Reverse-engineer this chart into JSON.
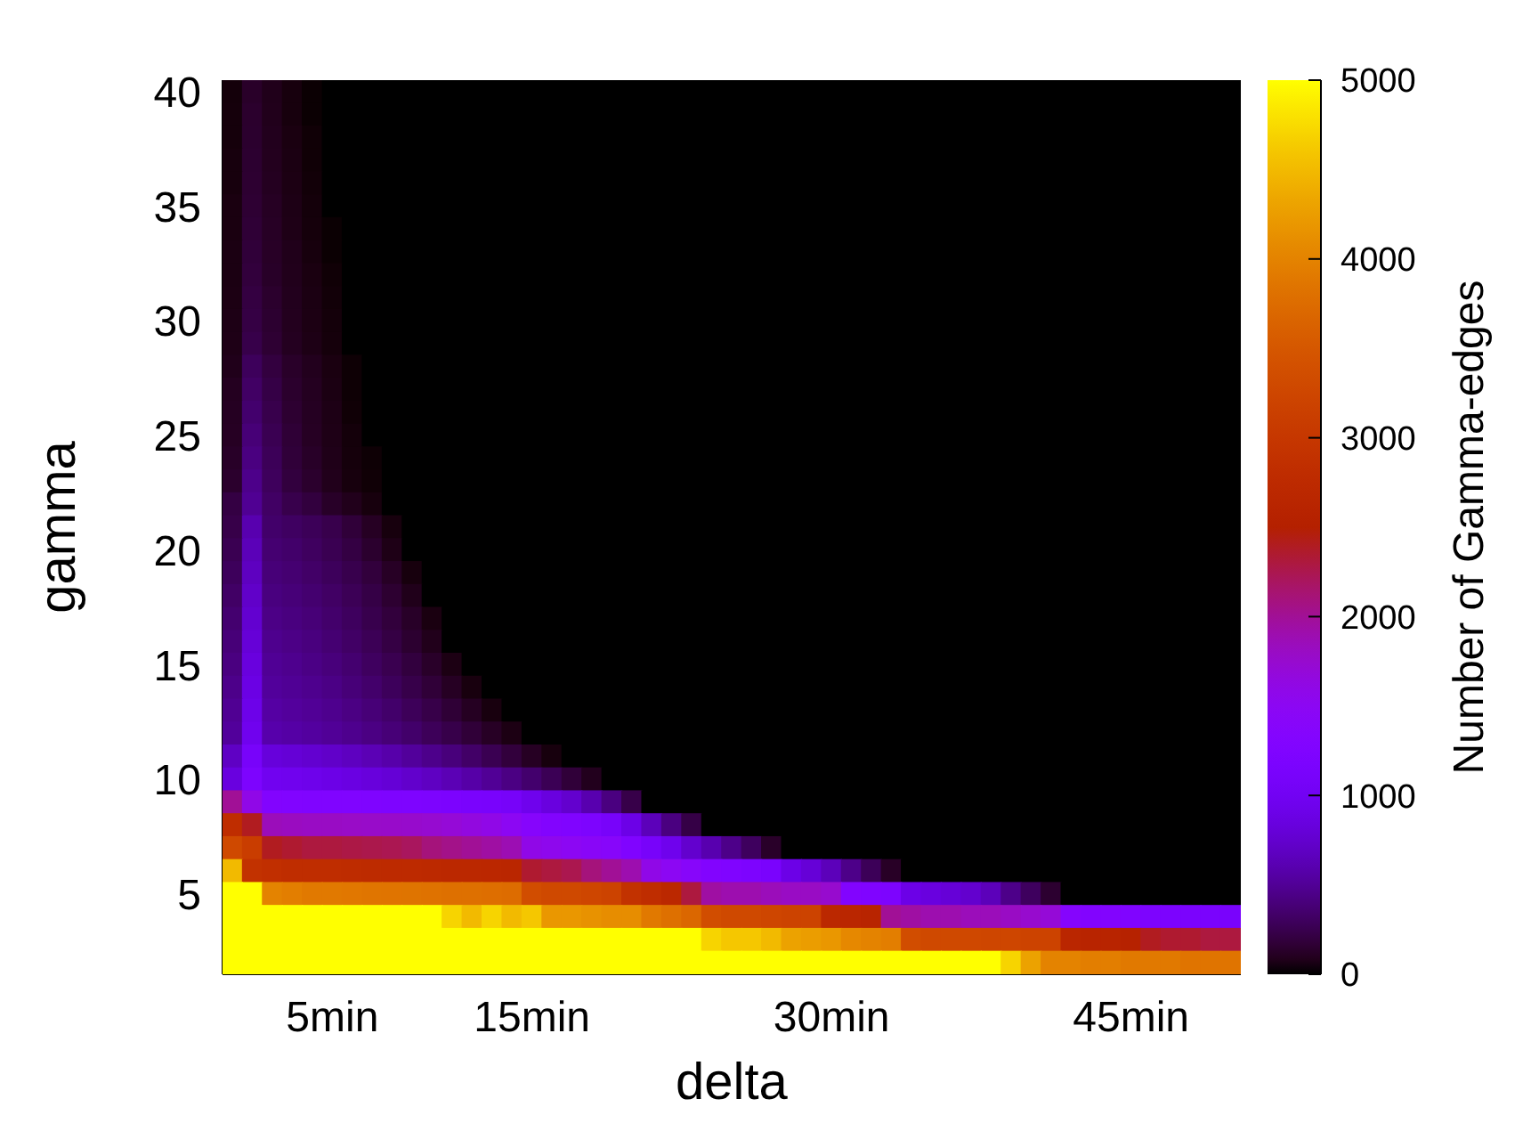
{
  "chart_data": {
    "type": "heatmap",
    "xlabel": "delta",
    "ylabel": "gamma",
    "clabel": "Number of Gamma-edges",
    "categories": [
      null,
      null,
      null,
      null,
      null,
      "5min",
      null,
      null,
      null,
      null,
      null,
      null,
      null,
      null,
      null,
      "15min",
      null,
      null,
      null,
      null,
      null,
      null,
      null,
      null,
      null,
      null,
      null,
      null,
      null,
      null,
      "30min",
      null,
      null,
      null,
      null,
      null,
      null,
      null,
      null,
      null,
      null,
      null,
      null,
      null,
      null,
      "45min",
      null,
      null,
      null,
      null,
      null
    ],
    "y_categories": [
      "40",
      null,
      null,
      null,
      null,
      "35",
      null,
      null,
      null,
      null,
      "30",
      null,
      null,
      null,
      null,
      "25",
      null,
      null,
      null,
      null,
      "20",
      null,
      null,
      null,
      null,
      "15",
      null,
      null,
      null,
      null,
      "10",
      null,
      null,
      null,
      null,
      "5",
      null,
      null,
      null
    ],
    "clim": [
      0,
      5000
    ],
    "cticks": [
      0,
      1000,
      2000,
      3000,
      4000,
      5000
    ],
    "cells": [
      [
        30,
        130,
        80,
        40,
        10,
        0,
        0,
        0,
        0,
        0,
        0,
        0,
        0,
        0,
        0,
        0,
        0,
        0,
        0,
        0,
        0,
        0,
        0,
        0,
        0,
        0,
        0,
        0,
        0,
        0,
        0,
        0,
        0,
        0,
        0,
        0,
        0,
        0,
        0,
        0,
        0,
        0,
        0,
        0,
        0,
        0,
        0,
        0,
        0,
        0,
        0
      ],
      [
        35,
        140,
        85,
        40,
        10,
        0,
        0,
        0,
        0,
        0,
        0,
        0,
        0,
        0,
        0,
        0,
        0,
        0,
        0,
        0,
        0,
        0,
        0,
        0,
        0,
        0,
        0,
        0,
        0,
        0,
        0,
        0,
        0,
        0,
        0,
        0,
        0,
        0,
        0,
        0,
        0,
        0,
        0,
        0,
        0,
        0,
        0,
        0,
        0,
        0,
        0
      ],
      [
        35,
        145,
        90,
        50,
        20,
        0,
        0,
        0,
        0,
        0,
        0,
        0,
        0,
        0,
        0,
        0,
        0,
        0,
        0,
        0,
        0,
        0,
        0,
        0,
        0,
        0,
        0,
        0,
        0,
        0,
        0,
        0,
        0,
        0,
        0,
        0,
        0,
        0,
        0,
        0,
        0,
        0,
        0,
        0,
        0,
        0,
        0,
        0,
        0,
        0,
        0
      ],
      [
        40,
        150,
        95,
        55,
        20,
        0,
        0,
        0,
        0,
        0,
        0,
        0,
        0,
        0,
        0,
        0,
        0,
        0,
        0,
        0,
        0,
        0,
        0,
        0,
        0,
        0,
        0,
        0,
        0,
        0,
        0,
        0,
        0,
        0,
        0,
        0,
        0,
        0,
        0,
        0,
        0,
        0,
        0,
        0,
        0,
        0,
        0,
        0,
        0,
        0,
        0
      ],
      [
        40,
        155,
        100,
        60,
        25,
        0,
        0,
        0,
        0,
        0,
        0,
        0,
        0,
        0,
        0,
        0,
        0,
        0,
        0,
        0,
        0,
        0,
        0,
        0,
        0,
        0,
        0,
        0,
        0,
        0,
        0,
        0,
        0,
        0,
        0,
        0,
        0,
        0,
        0,
        0,
        0,
        0,
        0,
        0,
        0,
        0,
        0,
        0,
        0,
        0,
        0
      ],
      [
        50,
        160,
        110,
        65,
        30,
        0,
        0,
        0,
        0,
        0,
        0,
        0,
        0,
        0,
        0,
        0,
        0,
        0,
        0,
        0,
        0,
        0,
        0,
        0,
        0,
        0,
        0,
        0,
        0,
        0,
        0,
        0,
        0,
        0,
        0,
        0,
        0,
        0,
        0,
        0,
        0,
        0,
        0,
        0,
        0,
        0,
        0,
        0,
        0,
        0,
        0
      ],
      [
        50,
        170,
        115,
        70,
        35,
        10,
        0,
        0,
        0,
        0,
        0,
        0,
        0,
        0,
        0,
        0,
        0,
        0,
        0,
        0,
        0,
        0,
        0,
        0,
        0,
        0,
        0,
        0,
        0,
        0,
        0,
        0,
        0,
        0,
        0,
        0,
        0,
        0,
        0,
        0,
        0,
        0,
        0,
        0,
        0,
        0,
        0,
        0,
        0,
        0,
        0
      ],
      [
        55,
        180,
        120,
        80,
        40,
        10,
        0,
        0,
        0,
        0,
        0,
        0,
        0,
        0,
        0,
        0,
        0,
        0,
        0,
        0,
        0,
        0,
        0,
        0,
        0,
        0,
        0,
        0,
        0,
        0,
        0,
        0,
        0,
        0,
        0,
        0,
        0,
        0,
        0,
        0,
        0,
        0,
        0,
        0,
        0,
        0,
        0,
        0,
        0,
        0,
        0
      ],
      [
        55,
        190,
        125,
        85,
        50,
        20,
        0,
        0,
        0,
        0,
        0,
        0,
        0,
        0,
        0,
        0,
        0,
        0,
        0,
        0,
        0,
        0,
        0,
        0,
        0,
        0,
        0,
        0,
        0,
        0,
        0,
        0,
        0,
        0,
        0,
        0,
        0,
        0,
        0,
        0,
        0,
        0,
        0,
        0,
        0,
        0,
        0,
        0,
        0,
        0,
        0
      ],
      [
        60,
        205,
        140,
        90,
        55,
        25,
        0,
        0,
        0,
        0,
        0,
        0,
        0,
        0,
        0,
        0,
        0,
        0,
        0,
        0,
        0,
        0,
        0,
        0,
        0,
        0,
        0,
        0,
        0,
        0,
        0,
        0,
        0,
        0,
        0,
        0,
        0,
        0,
        0,
        0,
        0,
        0,
        0,
        0,
        0,
        0,
        0,
        0,
        0,
        0,
        0
      ],
      [
        65,
        215,
        150,
        95,
        60,
        30,
        0,
        0,
        0,
        0,
        0,
        0,
        0,
        0,
        0,
        0,
        0,
        0,
        0,
        0,
        0,
        0,
        0,
        0,
        0,
        0,
        0,
        0,
        0,
        0,
        0,
        0,
        0,
        0,
        0,
        0,
        0,
        0,
        0,
        0,
        0,
        0,
        0,
        0,
        0,
        0,
        0,
        0,
        0,
        0,
        0
      ],
      [
        70,
        235,
        160,
        100,
        65,
        35,
        0,
        0,
        0,
        0,
        0,
        0,
        0,
        0,
        0,
        0,
        0,
        0,
        0,
        0,
        0,
        0,
        0,
        0,
        0,
        0,
        0,
        0,
        0,
        0,
        0,
        0,
        0,
        0,
        0,
        0,
        0,
        0,
        0,
        0,
        0,
        0,
        0,
        0,
        0,
        0,
        0,
        0,
        0,
        0,
        0
      ],
      [
        80,
        290,
        200,
        130,
        90,
        50,
        15,
        0,
        0,
        0,
        0,
        0,
        0,
        0,
        0,
        0,
        0,
        0,
        0,
        0,
        0,
        0,
        0,
        0,
        0,
        0,
        0,
        0,
        0,
        0,
        0,
        0,
        0,
        0,
        0,
        0,
        0,
        0,
        0,
        0,
        0,
        0,
        0,
        0,
        0,
        0,
        0,
        0,
        0,
        0,
        0
      ],
      [
        100,
        320,
        220,
        140,
        100,
        55,
        15,
        0,
        0,
        0,
        0,
        0,
        0,
        0,
        0,
        0,
        0,
        0,
        0,
        0,
        0,
        0,
        0,
        0,
        0,
        0,
        0,
        0,
        0,
        0,
        0,
        0,
        0,
        0,
        0,
        0,
        0,
        0,
        0,
        0,
        0,
        0,
        0,
        0,
        0,
        0,
        0,
        0,
        0,
        0,
        0
      ],
      [
        105,
        350,
        240,
        155,
        105,
        65,
        20,
        0,
        0,
        0,
        0,
        0,
        0,
        0,
        0,
        0,
        0,
        0,
        0,
        0,
        0,
        0,
        0,
        0,
        0,
        0,
        0,
        0,
        0,
        0,
        0,
        0,
        0,
        0,
        0,
        0,
        0,
        0,
        0,
        0,
        0,
        0,
        0,
        0,
        0,
        0,
        0,
        0,
        0,
        0,
        0
      ],
      [
        110,
        385,
        260,
        170,
        110,
        70,
        30,
        0,
        0,
        0,
        0,
        0,
        0,
        0,
        0,
        0,
        0,
        0,
        0,
        0,
        0,
        0,
        0,
        0,
        0,
        0,
        0,
        0,
        0,
        0,
        0,
        0,
        0,
        0,
        0,
        0,
        0,
        0,
        0,
        0,
        0,
        0,
        0,
        0,
        0,
        0,
        0,
        0,
        0,
        0,
        0
      ],
      [
        125,
        420,
        280,
        180,
        125,
        75,
        35,
        15,
        0,
        0,
        0,
        0,
        0,
        0,
        0,
        0,
        0,
        0,
        0,
        0,
        0,
        0,
        0,
        0,
        0,
        0,
        0,
        0,
        0,
        0,
        0,
        0,
        0,
        0,
        0,
        0,
        0,
        0,
        0,
        0,
        0,
        0,
        0,
        0,
        0,
        0,
        0,
        0,
        0,
        0,
        0
      ],
      [
        140,
        455,
        295,
        195,
        140,
        85,
        40,
        20,
        0,
        0,
        0,
        0,
        0,
        0,
        0,
        0,
        0,
        0,
        0,
        0,
        0,
        0,
        0,
        0,
        0,
        0,
        0,
        0,
        0,
        0,
        0,
        0,
        0,
        0,
        0,
        0,
        0,
        0,
        0,
        0,
        0,
        0,
        0,
        0,
        0,
        0,
        0,
        0,
        0,
        0,
        0
      ],
      [
        210,
        490,
        320,
        240,
        195,
        125,
        85,
        40,
        0,
        0,
        0,
        0,
        0,
        0,
        0,
        0,
        0,
        0,
        0,
        0,
        0,
        0,
        0,
        0,
        0,
        0,
        0,
        0,
        0,
        0,
        0,
        0,
        0,
        0,
        0,
        0,
        0,
        0,
        0,
        0,
        0,
        0,
        0,
        0,
        0,
        0,
        0,
        0,
        0,
        0,
        0
      ],
      [
        230,
        600,
        340,
        310,
        280,
        240,
        180,
        110,
        40,
        0,
        0,
        0,
        0,
        0,
        0,
        0,
        0,
        0,
        0,
        0,
        0,
        0,
        0,
        0,
        0,
        0,
        0,
        0,
        0,
        0,
        0,
        0,
        0,
        0,
        0,
        0,
        0,
        0,
        0,
        0,
        0,
        0,
        0,
        0,
        0,
        0,
        0,
        0,
        0,
        0,
        0
      ],
      [
        260,
        640,
        365,
        340,
        305,
        260,
        210,
        145,
        70,
        0,
        0,
        0,
        0,
        0,
        0,
        0,
        0,
        0,
        0,
        0,
        0,
        0,
        0,
        0,
        0,
        0,
        0,
        0,
        0,
        0,
        0,
        0,
        0,
        0,
        0,
        0,
        0,
        0,
        0,
        0,
        0,
        0,
        0,
        0,
        0,
        0,
        0,
        0,
        0,
        0,
        0
      ],
      [
        290,
        680,
        390,
        365,
        330,
        290,
        245,
        190,
        115,
        40,
        0,
        0,
        0,
        0,
        0,
        0,
        0,
        0,
        0,
        0,
        0,
        0,
        0,
        0,
        0,
        0,
        0,
        0,
        0,
        0,
        0,
        0,
        0,
        0,
        0,
        0,
        0,
        0,
        0,
        0,
        0,
        0,
        0,
        0,
        0,
        0,
        0,
        0,
        0,
        0,
        0
      ],
      [
        325,
        720,
        415,
        390,
        360,
        320,
        275,
        220,
        155,
        80,
        0,
        0,
        0,
        0,
        0,
        0,
        0,
        0,
        0,
        0,
        0,
        0,
        0,
        0,
        0,
        0,
        0,
        0,
        0,
        0,
        0,
        0,
        0,
        0,
        0,
        0,
        0,
        0,
        0,
        0,
        0,
        0,
        0,
        0,
        0,
        0,
        0,
        0,
        0,
        0,
        0
      ],
      [
        360,
        760,
        440,
        415,
        385,
        345,
        300,
        245,
        190,
        125,
        50,
        0,
        0,
        0,
        0,
        0,
        0,
        0,
        0,
        0,
        0,
        0,
        0,
        0,
        0,
        0,
        0,
        0,
        0,
        0,
        0,
        0,
        0,
        0,
        0,
        0,
        0,
        0,
        0,
        0,
        0,
        0,
        0,
        0,
        0,
        0,
        0,
        0,
        0,
        0,
        0
      ],
      [
        390,
        800,
        470,
        440,
        410,
        370,
        325,
        275,
        215,
        150,
        85,
        0,
        0,
        0,
        0,
        0,
        0,
        0,
        0,
        0,
        0,
        0,
        0,
        0,
        0,
        0,
        0,
        0,
        0,
        0,
        0,
        0,
        0,
        0,
        0,
        0,
        0,
        0,
        0,
        0,
        0,
        0,
        0,
        0,
        0,
        0,
        0,
        0,
        0,
        0,
        0
      ],
      [
        420,
        840,
        495,
        470,
        435,
        400,
        360,
        305,
        255,
        195,
        130,
        60,
        0,
        0,
        0,
        0,
        0,
        0,
        0,
        0,
        0,
        0,
        0,
        0,
        0,
        0,
        0,
        0,
        0,
        0,
        0,
        0,
        0,
        0,
        0,
        0,
        0,
        0,
        0,
        0,
        0,
        0,
        0,
        0,
        0,
        0,
        0,
        0,
        0,
        0,
        0
      ],
      [
        455,
        880,
        520,
        495,
        470,
        435,
        390,
        345,
        290,
        235,
        175,
        110,
        45,
        0,
        0,
        0,
        0,
        0,
        0,
        0,
        0,
        0,
        0,
        0,
        0,
        0,
        0,
        0,
        0,
        0,
        0,
        0,
        0,
        0,
        0,
        0,
        0,
        0,
        0,
        0,
        0,
        0,
        0,
        0,
        0,
        0,
        0,
        0,
        0,
        0,
        0
      ],
      [
        490,
        920,
        550,
        525,
        500,
        470,
        430,
        385,
        340,
        285,
        230,
        170,
        105,
        45,
        0,
        0,
        0,
        0,
        0,
        0,
        0,
        0,
        0,
        0,
        0,
        0,
        0,
        0,
        0,
        0,
        0,
        0,
        0,
        0,
        0,
        0,
        0,
        0,
        0,
        0,
        0,
        0,
        0,
        0,
        0,
        0,
        0,
        0,
        0,
        0,
        0
      ],
      [
        520,
        960,
        585,
        560,
        535,
        505,
        470,
        430,
        385,
        340,
        285,
        235,
        175,
        115,
        60,
        0,
        0,
        0,
        0,
        0,
        0,
        0,
        0,
        0,
        0,
        0,
        0,
        0,
        0,
        0,
        0,
        0,
        0,
        0,
        0,
        0,
        0,
        0,
        0,
        0,
        0,
        0,
        0,
        0,
        0,
        0,
        0,
        0,
        0,
        0,
        0
      ],
      [
        700,
        1100,
        820,
        790,
        760,
        720,
        680,
        630,
        580,
        520,
        460,
        400,
        330,
        260,
        190,
        110,
        40,
        0,
        0,
        0,
        0,
        0,
        0,
        0,
        0,
        0,
        0,
        0,
        0,
        0,
        0,
        0,
        0,
        0,
        0,
        0,
        0,
        0,
        0,
        0,
        0,
        0,
        0,
        0,
        0,
        0,
        0,
        0,
        0,
        0,
        0
      ],
      [
        850,
        1200,
        980,
        960,
        930,
        900,
        870,
        830,
        790,
        740,
        690,
        630,
        570,
        500,
        430,
        350,
        270,
        180,
        90,
        0,
        0,
        0,
        0,
        0,
        0,
        0,
        0,
        0,
        0,
        0,
        0,
        0,
        0,
        0,
        0,
        0,
        0,
        0,
        0,
        0,
        0,
        0,
        0,
        0,
        0,
        0,
        0,
        0,
        0,
        0,
        0
      ],
      [
        2000,
        1600,
        1300,
        1280,
        1260,
        1250,
        1250,
        1240,
        1230,
        1220,
        1200,
        1180,
        1150,
        1120,
        1080,
        950,
        850,
        750,
        600,
        420,
        230,
        0,
        0,
        0,
        0,
        0,
        0,
        0,
        0,
        0,
        0,
        0,
        0,
        0,
        0,
        0,
        0,
        0,
        0,
        0,
        0,
        0,
        0,
        0,
        0,
        0,
        0,
        0,
        0,
        0,
        0
      ],
      [
        2800,
        2400,
        1850,
        1820,
        1800,
        1800,
        1790,
        1780,
        1770,
        1760,
        1740,
        1700,
        1650,
        1600,
        1500,
        1380,
        1300,
        1250,
        1200,
        1100,
        900,
        650,
        420,
        220,
        0,
        0,
        0,
        0,
        0,
        0,
        0,
        0,
        0,
        0,
        0,
        0,
        0,
        0,
        0,
        0,
        0,
        0,
        0,
        0,
        0,
        0,
        0,
        0,
        0,
        0,
        0
      ],
      [
        3300,
        3100,
        2400,
        2350,
        2300,
        2300,
        2280,
        2260,
        2240,
        2200,
        2100,
        2050,
        2000,
        1950,
        1880,
        1600,
        1550,
        1500,
        1450,
        1400,
        1250,
        1100,
        950,
        750,
        600,
        450,
        300,
        130,
        0,
        0,
        0,
        0,
        0,
        0,
        0,
        0,
        0,
        0,
        0,
        0,
        0,
        0,
        0,
        0,
        0,
        0,
        0,
        0,
        0,
        0,
        0
      ],
      [
        4500,
        2900,
        2850,
        2800,
        2800,
        2800,
        2780,
        2760,
        2750,
        2740,
        2720,
        2700,
        2700,
        2680,
        2650,
        2350,
        2300,
        2250,
        2100,
        2000,
        1900,
        1600,
        1500,
        1400,
        1300,
        1250,
        1200,
        1150,
        900,
        800,
        650,
        450,
        280,
        120,
        0,
        0,
        0,
        0,
        0,
        0,
        0,
        0,
        0,
        0,
        0,
        0,
        0,
        0,
        0,
        0,
        0
      ],
      [
        5000,
        5000,
        4000,
        3950,
        3900,
        3900,
        3880,
        3860,
        3850,
        3840,
        3820,
        3800,
        3800,
        3780,
        3750,
        3350,
        3300,
        3300,
        3250,
        3200,
        2900,
        2800,
        2700,
        2300,
        1950,
        1900,
        1900,
        1850,
        1800,
        1800,
        1750,
        1300,
        1250,
        1200,
        900,
        850,
        800,
        750,
        650,
        450,
        300,
        150,
        0,
        0,
        0,
        0,
        0,
        0,
        0,
        0,
        0
      ],
      [
        5000,
        5000,
        5000,
        5000,
        5000,
        5000,
        5000,
        5000,
        5000,
        5000,
        5000,
        4700,
        4500,
        4700,
        4500,
        4600,
        4200,
        4200,
        4150,
        4100,
        4100,
        3900,
        3800,
        3700,
        3350,
        3300,
        3300,
        3250,
        3200,
        3200,
        2700,
        2650,
        2600,
        2000,
        1950,
        1900,
        1900,
        1850,
        1850,
        1800,
        1750,
        1700,
        1350,
        1300,
        1300,
        1250,
        1200,
        1180,
        1160,
        1150,
        1130
      ],
      [
        5000,
        5000,
        5000,
        5000,
        5000,
        5000,
        5000,
        5000,
        5000,
        5000,
        5000,
        5000,
        5000,
        5000,
        5000,
        5000,
        5000,
        5000,
        5000,
        5000,
        5000,
        5000,
        5000,
        5000,
        4700,
        4600,
        4600,
        4500,
        4300,
        4250,
        4200,
        4050,
        4000,
        3950,
        3350,
        3300,
        3300,
        3280,
        3250,
        3250,
        3200,
        3200,
        2650,
        2600,
        2600,
        2550,
        2400,
        2350,
        2350,
        2300,
        2300
      ],
      [
        5000,
        5000,
        5000,
        5000,
        5000,
        5000,
        5000,
        5000,
        5000,
        5000,
        5000,
        5000,
        5000,
        5000,
        5000,
        5000,
        5000,
        5000,
        5000,
        5000,
        5000,
        5000,
        5000,
        5000,
        5000,
        5000,
        5000,
        5000,
        5000,
        5000,
        5000,
        5000,
        5000,
        5000,
        5000,
        5000,
        5000,
        5000,
        5000,
        4700,
        4300,
        4000,
        4000,
        3950,
        3950,
        3900,
        3900,
        3900,
        3850,
        3850,
        3850
      ]
    ]
  }
}
